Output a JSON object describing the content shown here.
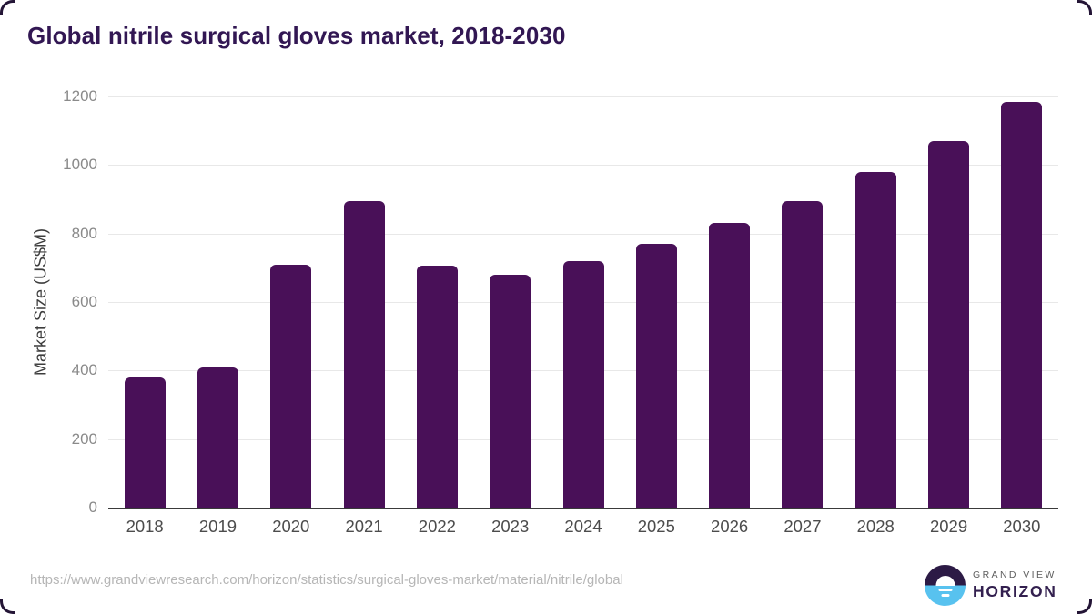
{
  "header": {
    "title": "Global nitrile surgical gloves market, 2018-2030"
  },
  "chart_data": {
    "type": "bar",
    "title": "Global nitrile surgical gloves market, 2018-2030",
    "categories": [
      "2018",
      "2019",
      "2020",
      "2021",
      "2022",
      "2023",
      "2024",
      "2025",
      "2026",
      "2027",
      "2028",
      "2029",
      "2030"
    ],
    "values": [
      380,
      410,
      710,
      895,
      705,
      680,
      720,
      770,
      830,
      895,
      980,
      1070,
      1185
    ],
    "xlabel": "",
    "ylabel": "Market Size (US$M)",
    "ylim": [
      0,
      1200
    ],
    "ytick_interval": 200,
    "yticks": [
      0,
      200,
      400,
      600,
      800,
      1000,
      1200
    ],
    "grid": true,
    "legend": "none",
    "bar_color": "#491058"
  },
  "footer": {
    "source_url": "https://www.grandviewresearch.com/horizon/statistics/surgical-gloves-market/material/nitrile/global"
  },
  "logo": {
    "line1": "GRAND VIEW",
    "line2": "HORIZON"
  },
  "colors": {
    "title": "#321753",
    "bar": "#491058",
    "gridline": "#e8e8e8",
    "axis_line": "#3a3a3a",
    "y_tick_text": "#8a8a8a",
    "x_tick_text": "#4c4c4c",
    "url_text": "#b6b6b6",
    "logo_purple": "#2c1a45",
    "logo_blue": "#58c2ef",
    "logo_horizon_text": "#33204f"
  }
}
